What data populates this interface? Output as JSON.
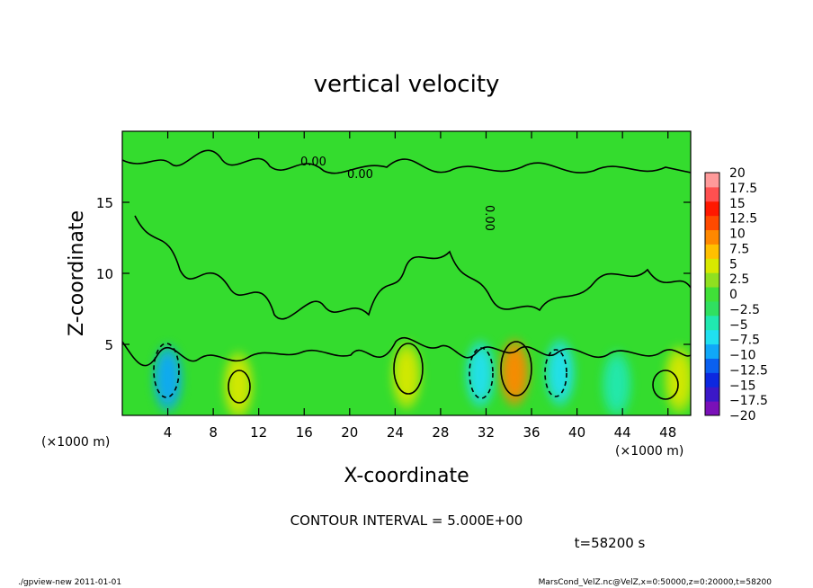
{
  "chart_data": {
    "type": "heatmap",
    "title": "vertical velocity",
    "xlabel": "X-coordinate",
    "ylabel": "Z-coordinate",
    "x_unit": "(×1000 m)",
    "y_unit": "(×1000 m)",
    "xlim": [
      0,
      50
    ],
    "ylim": [
      0,
      20
    ],
    "x_ticks": [
      4,
      8,
      12,
      16,
      20,
      24,
      28,
      32,
      36,
      40,
      44,
      48
    ],
    "y_ticks": [
      5,
      10,
      15
    ],
    "contour_interval_text": "CONTOUR INTERVAL = 5.000E+00",
    "contour_labels": [
      "0.00",
      "0.00",
      "0.00"
    ],
    "time_text": "t=58200 s",
    "colorbar": {
      "labels": [
        "20",
        "17.5",
        "15",
        "12.5",
        "10",
        "7.5",
        "5",
        "2.5",
        "0",
        "−2.5",
        "−5",
        "−7.5",
        "−10",
        "−12.5",
        "−15",
        "−17.5",
        "−20"
      ],
      "colors": [
        "#7a10b8",
        "#3b18c8",
        "#0c28e0",
        "#0a60f0",
        "#10a8f8",
        "#20e0f0",
        "#20e8b0",
        "#30e060",
        "#40e038",
        "#90e020",
        "#d8e800",
        "#ffc000",
        "#ff8800",
        "#ff4a00",
        "#ff1800",
        "#ff5050",
        "#ff9a9a"
      ]
    },
    "features": [
      {
        "x": 4.0,
        "z": 2.6,
        "value": -10
      },
      {
        "x": 10.2,
        "z": 2.1,
        "value": 5
      },
      {
        "x": 25.0,
        "z": 2.8,
        "value": 5
      },
      {
        "x": 31.5,
        "z": 2.9,
        "value": -7.5
      },
      {
        "x": 34.5,
        "z": 3.0,
        "value": 10
      },
      {
        "x": 38.5,
        "z": 3.0,
        "value": -7.5
      },
      {
        "x": 43.5,
        "z": 2.2,
        "value": -5
      },
      {
        "x": 49.0,
        "z": 2.5,
        "value": 5
      }
    ]
  },
  "footer": {
    "left": "./gpview-new 2011-01-01",
    "right": "MarsCond_VelZ.nc@VelZ,x=0:50000,z=0:20000,t=58200"
  }
}
